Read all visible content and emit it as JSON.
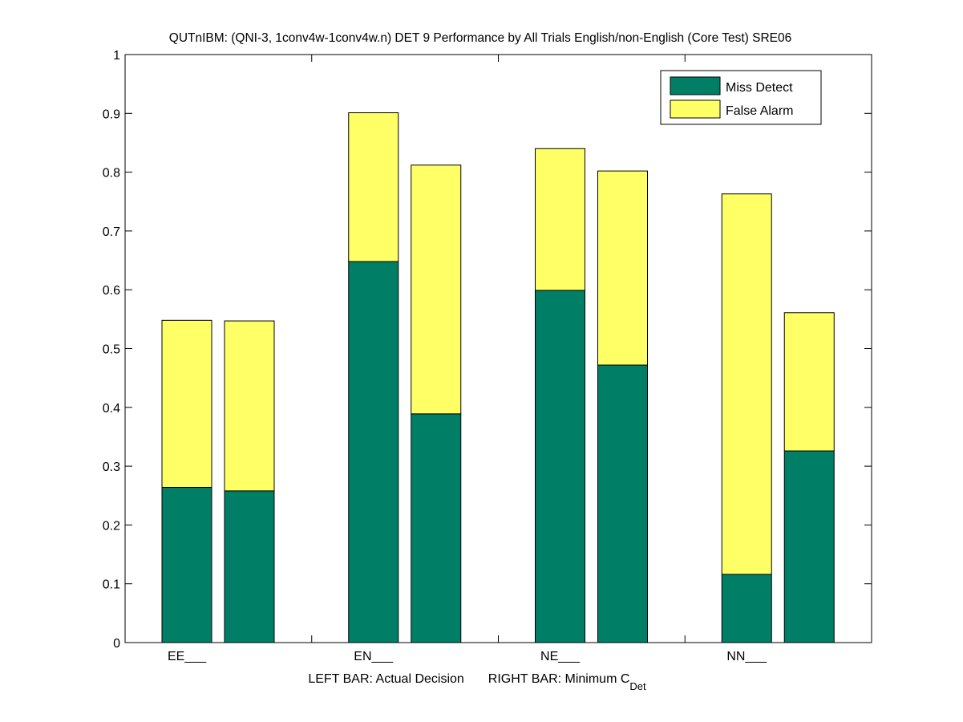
{
  "chart_data": {
    "type": "bar",
    "stacked": true,
    "title": "QUTnIBM: (QNI-3, 1conv4w-1conv4w.n) DET 9 Performance by All Trials English/non-English (Core Test) SRE06",
    "xlabel": {
      "left_part": "LEFT BAR: Actual Decision",
      "right_part": "RIGHT BAR: Minimum C",
      "subscript": "Det"
    },
    "ylabel": "",
    "ylim": [
      0,
      1
    ],
    "yticks": [
      "0",
      "0.1",
      "0.2",
      "0.3",
      "0.4",
      "0.5",
      "0.6",
      "0.7",
      "0.8",
      "0.9",
      "1"
    ],
    "categories": [
      "EE___",
      "EN___",
      "NE___",
      "NN___"
    ],
    "bars_per_category": [
      "Actual Decision",
      "Minimum C_Det"
    ],
    "series": [
      {
        "name": "Miss Detect",
        "color": "#007f66",
        "values": [
          [
            0.264,
            0.258
          ],
          [
            0.648,
            0.389
          ],
          [
            0.599,
            0.472
          ],
          [
            0.116,
            0.326
          ]
        ]
      },
      {
        "name": "False Alarm",
        "color": "#ffff66",
        "values": [
          [
            0.284,
            0.289
          ],
          [
            0.253,
            0.423
          ],
          [
            0.241,
            0.33
          ],
          [
            0.647,
            0.235
          ]
        ]
      }
    ],
    "legend": {
      "position": "top-right",
      "entries": [
        "Miss Detect",
        "False Alarm"
      ]
    },
    "grid": false
  }
}
